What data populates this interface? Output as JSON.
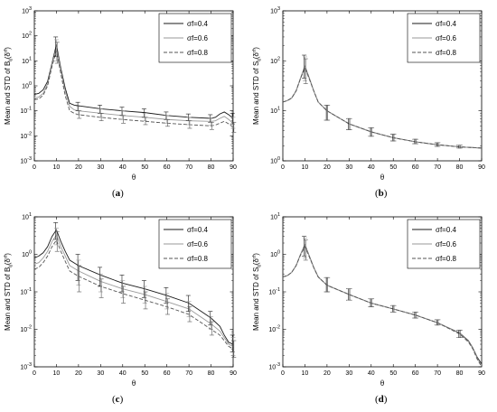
{
  "chart_data": [
    {
      "type": "line",
      "caption": "a",
      "xlabel": "θ",
      "ylabel": {
        "main": "Mean and STD of B",
        "sub": "ij",
        "paren": "(δ",
        "sup": "rf",
        "close": ")"
      },
      "xlim": [
        0,
        90
      ],
      "xticks": [
        "0",
        "10",
        "20",
        "30",
        "40",
        "50",
        "60",
        "70",
        "80",
        "90"
      ],
      "y_scale": "log",
      "ylim_exp": [
        -3,
        3
      ],
      "ytick_exponents": [
        -3,
        -2,
        -1,
        0,
        1,
        2,
        3
      ],
      "legend": [
        "σf=0.4",
        "σf=0.6",
        "σf=0.8"
      ],
      "legend_position": "top-right",
      "series": [
        {
          "name": "σf=0.4",
          "x": [
            0,
            2,
            4,
            6,
            8,
            10,
            12,
            14,
            16,
            18,
            20,
            30,
            40,
            50,
            60,
            70,
            80,
            82,
            84,
            86,
            88,
            90
          ],
          "y": [
            0.45,
            0.5,
            0.7,
            1.5,
            8,
            45,
            5,
            0.8,
            0.2,
            0.17,
            0.16,
            0.12,
            0.1,
            0.085,
            0.065,
            0.055,
            0.05,
            0.055,
            0.075,
            0.09,
            0.07,
            0.05
          ]
        },
        {
          "name": "σf=0.6",
          "x": [
            0,
            2,
            4,
            6,
            8,
            10,
            12,
            14,
            16,
            18,
            20,
            30,
            40,
            50,
            60,
            70,
            80,
            82,
            84,
            86,
            88,
            90
          ],
          "y": [
            0.32,
            0.36,
            0.5,
            1.2,
            7,
            35,
            4,
            0.6,
            0.15,
            0.11,
            0.1,
            0.08,
            0.065,
            0.055,
            0.045,
            0.04,
            0.038,
            0.04,
            0.05,
            0.06,
            0.045,
            0.032
          ]
        },
        {
          "name": "σf=0.8",
          "x": [
            0,
            2,
            4,
            6,
            8,
            10,
            12,
            14,
            16,
            18,
            20,
            30,
            40,
            50,
            60,
            70,
            80,
            82,
            84,
            86,
            88,
            90
          ],
          "y": [
            0.28,
            0.3,
            0.42,
            1.0,
            6,
            25,
            3,
            0.4,
            0.1,
            0.08,
            0.07,
            0.055,
            0.045,
            0.038,
            0.032,
            0.028,
            0.025,
            0.027,
            0.032,
            0.038,
            0.03,
            0.022
          ]
        }
      ],
      "errorbars": [
        {
          "x": 10,
          "lo": [
            15,
            10,
            8
          ],
          "hi": [
            90,
            70,
            55
          ]
        },
        {
          "x": 20,
          "lo": [
            0.1,
            0.07,
            0.05
          ],
          "hi": [
            0.22,
            0.15,
            0.1
          ]
        },
        {
          "x": 30,
          "lo": [
            0.08,
            0.055,
            0.04
          ],
          "hi": [
            0.17,
            0.12,
            0.08
          ]
        },
        {
          "x": 40,
          "lo": [
            0.065,
            0.045,
            0.032
          ],
          "hi": [
            0.14,
            0.1,
            0.065
          ]
        },
        {
          "x": 50,
          "lo": [
            0.055,
            0.04,
            0.028
          ],
          "hi": [
            0.12,
            0.08,
            0.055
          ]
        },
        {
          "x": 60,
          "lo": [
            0.045,
            0.032,
            0.024
          ],
          "hi": [
            0.09,
            0.065,
            0.045
          ]
        },
        {
          "x": 70,
          "lo": [
            0.04,
            0.028,
            0.02
          ],
          "hi": [
            0.075,
            0.055,
            0.04
          ]
        },
        {
          "x": 80,
          "lo": [
            0.035,
            0.026,
            0.018
          ],
          "hi": [
            0.07,
            0.05,
            0.035
          ]
        },
        {
          "x": 90,
          "lo": [
            0.03,
            0.02,
            0.014
          ],
          "hi": [
            0.08,
            0.055,
            0.035
          ]
        }
      ]
    },
    {
      "type": "line",
      "caption": "b",
      "xlabel": "θ",
      "ylabel": {
        "main": "Mean and STD of S",
        "sub": "ij",
        "paren": "(δ",
        "sup": "rf",
        "close": ")"
      },
      "xlim": [
        0,
        90
      ],
      "xticks": [
        "0",
        "10",
        "20",
        "30",
        "40",
        "50",
        "60",
        "70",
        "80",
        "90"
      ],
      "y_scale": "log",
      "ylim_exp": [
        0,
        3
      ],
      "ytick_exponents": [
        0,
        1,
        2,
        3
      ],
      "legend": [
        "σf=0.4",
        "σf=0.6",
        "σf=0.8"
      ],
      "legend_position": "top-right",
      "series": [
        {
          "name": "σf=0.4",
          "x": [
            0,
            2,
            4,
            6,
            8,
            10,
            12,
            14,
            16,
            20,
            30,
            40,
            50,
            60,
            70,
            80,
            90
          ],
          "y": [
            15,
            16,
            18,
            25,
            45,
            78,
            45,
            25,
            15,
            10,
            5.5,
            3.8,
            2.9,
            2.4,
            2.1,
            1.9,
            1.8
          ]
        },
        {
          "name": "σf=0.6",
          "x": [
            0,
            2,
            4,
            6,
            8,
            10,
            12,
            14,
            16,
            20,
            30,
            40,
            50,
            60,
            70,
            80,
            90
          ],
          "y": [
            15,
            16,
            18,
            25,
            45,
            75,
            44,
            25,
            15,
            10,
            5.5,
            3.8,
            2.9,
            2.4,
            2.1,
            1.9,
            1.8
          ]
        },
        {
          "name": "σf=0.8",
          "x": [
            0,
            2,
            4,
            6,
            8,
            10,
            12,
            14,
            16,
            20,
            30,
            40,
            50,
            60,
            70,
            80,
            90
          ],
          "y": [
            15,
            16,
            18,
            25,
            44,
            72,
            43,
            25,
            15,
            10,
            5.5,
            3.8,
            2.9,
            2.4,
            2.1,
            1.9,
            1.8
          ]
        }
      ],
      "errorbars": [
        {
          "x": 10,
          "lo": [
            45,
            40,
            35
          ],
          "hi": [
            130,
            120,
            110
          ]
        },
        {
          "x": 20,
          "lo": [
            6.5,
            6.5,
            6.5
          ],
          "hi": [
            13,
            13,
            13
          ]
        },
        {
          "x": 30,
          "lo": [
            4.2,
            4.2,
            4.2
          ],
          "hi": [
            7,
            7,
            7
          ]
        },
        {
          "x": 40,
          "lo": [
            3.1,
            3.1,
            3.1
          ],
          "hi": [
            4.6,
            4.6,
            4.6
          ]
        },
        {
          "x": 50,
          "lo": [
            2.5,
            2.5,
            2.5
          ],
          "hi": [
            3.4,
            3.4,
            3.4
          ]
        },
        {
          "x": 60,
          "lo": [
            2.2,
            2.2,
            2.2
          ],
          "hi": [
            2.7,
            2.7,
            2.7
          ]
        },
        {
          "x": 70,
          "lo": [
            1.95,
            1.95,
            1.95
          ],
          "hi": [
            2.3,
            2.3,
            2.3
          ]
        },
        {
          "x": 80,
          "lo": [
            1.8,
            1.8,
            1.8
          ],
          "hi": [
            2.05,
            2.05,
            2.05
          ]
        }
      ]
    },
    {
      "type": "line",
      "caption": "c",
      "xlabel": "θ",
      "ylabel": {
        "main": "Mean and STD of B",
        "sub": "ij",
        "paren": "(δ",
        "sup": "rf",
        "close": ")"
      },
      "xlim": [
        0,
        90
      ],
      "xticks": [
        "0",
        "10",
        "20",
        "30",
        "40",
        "50",
        "60",
        "70",
        "80",
        "90"
      ],
      "y_scale": "log",
      "ylim_exp": [
        -3,
        1
      ],
      "ytick_exponents": [
        -3,
        -2,
        -1,
        0,
        1
      ],
      "legend": [
        "σf=0.4",
        "σf=0.6",
        "σf=0.8"
      ],
      "legend_position": "top-right",
      "series": [
        {
          "name": "σf=0.4",
          "x": [
            0,
            2,
            4,
            6,
            8,
            10,
            12,
            14,
            16,
            20,
            30,
            40,
            50,
            60,
            70,
            80,
            84,
            86,
            88,
            90
          ],
          "y": [
            0.8,
            0.9,
            1.1,
            1.6,
            3,
            4.5,
            2.2,
            1.2,
            0.7,
            0.5,
            0.28,
            0.17,
            0.12,
            0.08,
            0.05,
            0.02,
            0.012,
            0.007,
            0.0045,
            0.004
          ]
        },
        {
          "name": "σf=0.6",
          "x": [
            0,
            2,
            4,
            6,
            8,
            10,
            12,
            14,
            16,
            20,
            30,
            40,
            50,
            60,
            70,
            80,
            84,
            86,
            88,
            90
          ],
          "y": [
            0.55,
            0.6,
            0.8,
            1.2,
            2.2,
            3.3,
            1.6,
            0.9,
            0.5,
            0.36,
            0.19,
            0.12,
            0.085,
            0.055,
            0.035,
            0.014,
            0.009,
            0.006,
            0.004,
            0.0035
          ]
        },
        {
          "name": "σf=0.8",
          "x": [
            0,
            2,
            4,
            6,
            8,
            10,
            12,
            14,
            16,
            20,
            30,
            40,
            50,
            60,
            70,
            80,
            84,
            86,
            88,
            90
          ],
          "y": [
            0.4,
            0.45,
            0.6,
            0.9,
            1.6,
            2.4,
            1.2,
            0.65,
            0.36,
            0.26,
            0.14,
            0.09,
            0.06,
            0.04,
            0.025,
            0.01,
            0.007,
            0.005,
            0.0035,
            0.003
          ]
        }
      ],
      "errorbars": [
        {
          "x": 10,
          "lo": [
            2.5,
            1.8,
            1.2
          ],
          "hi": [
            7,
            5,
            4
          ]
        },
        {
          "x": 20,
          "lo": [
            0.2,
            0.15,
            0.1
          ],
          "hi": [
            1,
            0.7,
            0.5
          ]
        },
        {
          "x": 30,
          "lo": [
            0.14,
            0.1,
            0.07
          ],
          "hi": [
            0.45,
            0.3,
            0.22
          ]
        },
        {
          "x": 40,
          "lo": [
            0.1,
            0.07,
            0.05
          ],
          "hi": [
            0.28,
            0.2,
            0.14
          ]
        },
        {
          "x": 50,
          "lo": [
            0.07,
            0.05,
            0.035
          ],
          "hi": [
            0.2,
            0.14,
            0.1
          ]
        },
        {
          "x": 60,
          "lo": [
            0.05,
            0.035,
            0.025
          ],
          "hi": [
            0.13,
            0.09,
            0.065
          ]
        },
        {
          "x": 70,
          "lo": [
            0.03,
            0.022,
            0.016
          ],
          "hi": [
            0.08,
            0.055,
            0.04
          ]
        },
        {
          "x": 80,
          "lo": [
            0.013,
            0.01,
            0.007
          ],
          "hi": [
            0.03,
            0.022,
            0.016
          ]
        },
        {
          "x": 90,
          "lo": [
            0.0025,
            0.002,
            0.0018
          ],
          "hi": [
            0.007,
            0.006,
            0.005
          ]
        }
      ]
    },
    {
      "type": "line",
      "caption": "d",
      "xlabel": "θ",
      "ylabel": {
        "main": "Mean and STD of S",
        "sub": "ij",
        "paren": "(δ",
        "sup": "rf",
        "close": ")"
      },
      "xlim": [
        0,
        90
      ],
      "xticks": [
        "0",
        "10",
        "20",
        "30",
        "40",
        "50",
        "60",
        "70",
        "80",
        "90"
      ],
      "y_scale": "log",
      "ylim_exp": [
        -3,
        1
      ],
      "ytick_exponents": [
        -3,
        -2,
        -1,
        0,
        1
      ],
      "legend": [
        "σf=0.4",
        "σf=0.6",
        "σf=0.8"
      ],
      "legend_position": "top-right",
      "series": [
        {
          "name": "σf=0.4",
          "x": [
            0,
            2,
            4,
            6,
            8,
            10,
            12,
            14,
            16,
            20,
            30,
            40,
            50,
            60,
            70,
            80,
            84,
            86,
            88,
            90
          ],
          "y": [
            0.25,
            0.27,
            0.33,
            0.5,
            1.0,
            1.8,
            0.9,
            0.45,
            0.25,
            0.15,
            0.085,
            0.05,
            0.035,
            0.024,
            0.015,
            0.008,
            0.005,
            0.0032,
            0.0018,
            0.0012
          ]
        },
        {
          "name": "σf=0.6",
          "x": [
            0,
            2,
            4,
            6,
            8,
            10,
            12,
            14,
            16,
            20,
            30,
            40,
            50,
            60,
            70,
            80,
            84,
            86,
            88,
            90
          ],
          "y": [
            0.25,
            0.27,
            0.33,
            0.5,
            1.0,
            1.7,
            0.88,
            0.45,
            0.25,
            0.15,
            0.085,
            0.05,
            0.035,
            0.024,
            0.015,
            0.0078,
            0.0048,
            0.0031,
            0.0017,
            0.0011
          ]
        },
        {
          "name": "σf=0.8",
          "x": [
            0,
            2,
            4,
            6,
            8,
            10,
            12,
            14,
            16,
            20,
            30,
            40,
            50,
            60,
            70,
            80,
            84,
            86,
            88,
            90
          ],
          "y": [
            0.25,
            0.27,
            0.33,
            0.5,
            0.95,
            1.6,
            0.85,
            0.44,
            0.25,
            0.15,
            0.085,
            0.05,
            0.035,
            0.024,
            0.015,
            0.0075,
            0.0046,
            0.003,
            0.0016,
            0.001
          ]
        }
      ],
      "errorbars": [
        {
          "x": 10,
          "lo": [
            0.9,
            0.8,
            0.7
          ],
          "hi": [
            3,
            2.7,
            2.4
          ]
        },
        {
          "x": 20,
          "lo": [
            0.1,
            0.1,
            0.1
          ],
          "hi": [
            0.24,
            0.24,
            0.24
          ]
        },
        {
          "x": 30,
          "lo": [
            0.06,
            0.06,
            0.06
          ],
          "hi": [
            0.12,
            0.12,
            0.12
          ]
        },
        {
          "x": 40,
          "lo": [
            0.04,
            0.04,
            0.04
          ],
          "hi": [
            0.065,
            0.065,
            0.065
          ]
        },
        {
          "x": 50,
          "lo": [
            0.029,
            0.029,
            0.029
          ],
          "hi": [
            0.043,
            0.043,
            0.043
          ]
        },
        {
          "x": 60,
          "lo": [
            0.02,
            0.02,
            0.02
          ],
          "hi": [
            0.029,
            0.029,
            0.029
          ]
        },
        {
          "x": 70,
          "lo": [
            0.013,
            0.013,
            0.013
          ],
          "hi": [
            0.018,
            0.018,
            0.018
          ]
        },
        {
          "x": 80,
          "lo": [
            0.006,
            0.006,
            0.006
          ],
          "hi": [
            0.0095,
            0.0095,
            0.0095
          ]
        }
      ]
    }
  ],
  "series_colors": [
    "#1a1a1a",
    "#9a9a9a",
    "#555555"
  ]
}
